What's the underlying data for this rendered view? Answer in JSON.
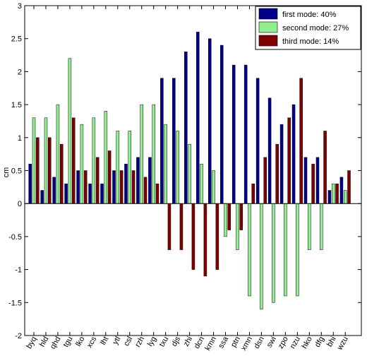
{
  "chart_data": {
    "type": "bar",
    "ylabel": "cm",
    "xlabel": "",
    "title": "",
    "ylim": [
      -2,
      3
    ],
    "yticks": [
      -2,
      -1.5,
      -1,
      -0.5,
      0,
      0.5,
      1,
      1.5,
      2,
      2.5,
      3
    ],
    "ytick_labels": [
      "-2",
      "-1.5",
      "-1",
      "-0.5",
      "0",
      "0.5",
      "1",
      "1.5",
      "2",
      "2.5",
      "3"
    ],
    "grid": false,
    "legend_position": "top-right",
    "categories": [
      "byq",
      "hld",
      "qhd",
      "tgu",
      "lko",
      "xcs",
      "lht",
      "ytl",
      "csl",
      "rzh",
      "lyg",
      "txu",
      "djs",
      "zhi",
      "dcn",
      "kmn",
      "ssa",
      "ptn",
      "xmn",
      "dsn",
      "swi",
      "zpo",
      "nzu",
      "hko",
      "dfg",
      "bhi",
      "wzu"
    ],
    "series": [
      {
        "name": "first mode: 40%",
        "color": "#00008b",
        "values": [
          0.6,
          0.2,
          0.4,
          0.3,
          0.5,
          0.3,
          0.3,
          0.5,
          0.6,
          0.7,
          0.7,
          1.9,
          1.9,
          2.3,
          2.6,
          2.5,
          2.4,
          2.1,
          2.1,
          1.9,
          1.6,
          1.2,
          1.5,
          0.7,
          0.7,
          0.2,
          0.4
        ]
      },
      {
        "name": "second mode: 27%",
        "color": "#90ee90",
        "values": [
          1.3,
          1.3,
          1.5,
          2.2,
          1.2,
          1.3,
          1.4,
          1.1,
          1.1,
          1.5,
          1.5,
          1.2,
          1.1,
          0.9,
          0.6,
          0.5,
          -0.5,
          -0.7,
          -1.4,
          -1.6,
          -1.5,
          -1.4,
          -1.4,
          -0.7,
          -0.7,
          0.3,
          0.2
        ]
      },
      {
        "name": "third mode: 14%",
        "color": "#800000",
        "values": [
          1.0,
          1.0,
          0.9,
          1.3,
          0.5,
          0.7,
          0.8,
          0.5,
          0.5,
          0.4,
          0.3,
          -0.7,
          -0.7,
          -1.0,
          -1.1,
          -1.0,
          -0.4,
          -0.4,
          0.3,
          0.7,
          0.9,
          1.3,
          1.9,
          0.6,
          1.1,
          0.3,
          0.5
        ]
      }
    ]
  }
}
